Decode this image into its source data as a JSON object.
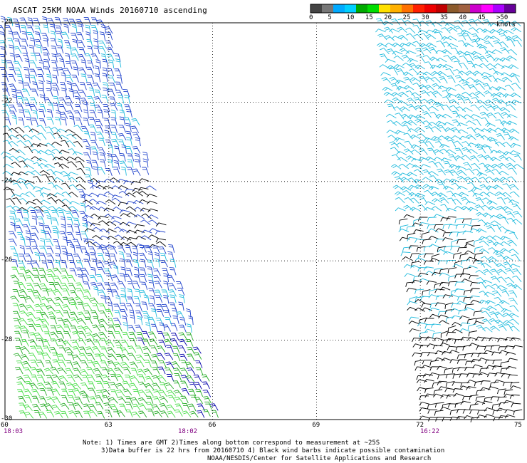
{
  "title": "ASCAT 25KM NOAA Winds 20160710 ascending",
  "colorbar": {
    "labels": [
      "0",
      "5",
      "10",
      "15",
      "20",
      "25",
      "30",
      "35",
      "40",
      "45",
      ">50 knots"
    ],
    "colors": [
      "#444444",
      "#777777",
      "#00aaff",
      "#00d0ff",
      "#00aa00",
      "#00dd00",
      "#ffe000",
      "#ffb000",
      "#ff7000",
      "#ff2000",
      "#ee0000",
      "#c00000",
      "#8b5a2b",
      "#a06040",
      "#cc00cc",
      "#ff00ff",
      "#aa00ff",
      "#660099"
    ]
  },
  "axes": {
    "lat_labels": [
      "-20",
      "-22",
      "-24",
      "-26",
      "-28",
      "-30"
    ],
    "lon_labels": [
      "60",
      "63",
      "66",
      "69",
      "72",
      "75"
    ],
    "lat_range": [
      -30,
      -20
    ],
    "lon_range": [
      60,
      75
    ]
  },
  "times": [
    "18:03",
    "18:02",
    "16:22"
  ],
  "notes": [
    "Note: 1) Times are GMT 2)Times along bottom correspond to measurement at ~25S",
    "3)Data buffer is 22 hrs from 20160710 4) Black wind barbs indicate possible contamination",
    "NOAA/NESDIS/Center for Satellite Applications and Research"
  ],
  "colors": {
    "barb_green": "#22aa22",
    "barb_lightgreen": "#44dd44",
    "barb_blue": "#2244cc",
    "barb_darkblue": "#0000aa",
    "barb_cyan": "#22bbdd",
    "barb_black": "#000000"
  }
}
